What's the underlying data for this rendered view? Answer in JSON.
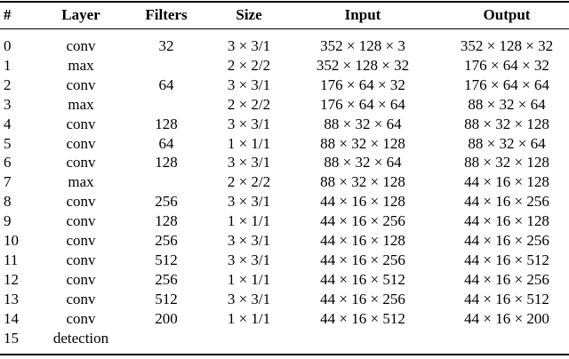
{
  "table": {
    "header": [
      "#",
      "Layer",
      "Filters",
      "Size",
      "Input",
      "Output"
    ],
    "rows": [
      [
        0,
        "conv",
        32,
        "3 × 3/1",
        "352 × 128 × 3",
        "352 × 128 × 32"
      ],
      [
        1,
        "max",
        null,
        "2 × 2/2",
        "352 × 128 × 32",
        "176 × 64 × 32"
      ],
      [
        2,
        "conv",
        64,
        "3 × 3/1",
        "176 × 64 × 32",
        "176 × 64 × 64"
      ],
      [
        3,
        "max",
        null,
        "2 × 2/2",
        "176 × 64 × 64",
        "88 × 32 × 64"
      ],
      [
        4,
        "conv",
        128,
        "3 × 3/1",
        "88 × 32 × 64",
        "88 × 32 × 128"
      ],
      [
        5,
        "conv",
        64,
        "1 × 1/1",
        "88 × 32 × 128",
        "88 × 32 × 64"
      ],
      [
        6,
        "conv",
        128,
        "3 × 3/1",
        "88 × 32 × 64",
        "88 × 32 × 128"
      ],
      [
        7,
        "max",
        null,
        "2 × 2/2",
        "88 × 32 × 128",
        "44 × 16 × 128"
      ],
      [
        8,
        "conv",
        256,
        "3 × 3/1",
        "44 × 16 × 128",
        "44 × 16 × 256"
      ],
      [
        9,
        "conv",
        128,
        "1 × 1/1",
        "44 × 16 × 256",
        "44 × 16 × 128"
      ],
      [
        10,
        "conv",
        256,
        "3 × 3/1",
        "44 × 16 × 128",
        "44 × 16 × 256"
      ],
      [
        11,
        "conv",
        512,
        "3 × 3/1",
        "44 × 16 × 256",
        "44 × 16 × 512"
      ],
      [
        12,
        "conv",
        256,
        "1 × 1/1",
        "44 × 16 × 512",
        "44 × 16 × 256"
      ],
      [
        13,
        "conv",
        512,
        "3 × 3/1",
        "44 × 16 × 256",
        "44 × 16 × 512"
      ],
      [
        14,
        "conv",
        200,
        "1 × 1/1",
        "44 × 16 × 512",
        "44 × 16 × 200"
      ],
      [
        15,
        "detection",
        null,
        null,
        null,
        null
      ]
    ]
  }
}
